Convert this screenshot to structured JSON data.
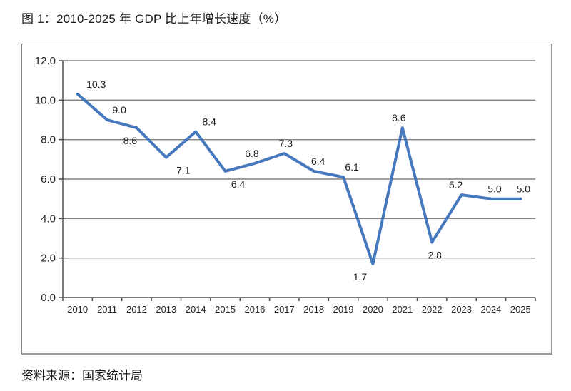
{
  "page": {
    "title": "图 1：2010-2025 年 GDP 比上年增长速度（%）",
    "source": "资料来源：国家统计局"
  },
  "chart_data": {
    "type": "line",
    "title": "图 1：2010-2025 年 GDP 比上年增长速度（%）",
    "categories": [
      "2010",
      "2011",
      "2012",
      "2013",
      "2014",
      "2015",
      "2016",
      "2017",
      "2018",
      "2019",
      "2020",
      "2021",
      "2022",
      "2023",
      "2024",
      "2025"
    ],
    "series": [
      {
        "name": "GDP 比上年增长速度（%）",
        "values": [
          10.3,
          9.0,
          8.6,
          7.1,
          8.4,
          6.4,
          6.8,
          7.3,
          6.4,
          6.1,
          1.7,
          8.6,
          2.8,
          5.2,
          5.0,
          5.0
        ],
        "data_labels": [
          "10.3",
          "9.0",
          "8.6",
          "7.1",
          "8.4",
          "6.4",
          "6.8",
          "7.3",
          "6.4",
          "6.1",
          "1.7",
          "8.6",
          "2.8",
          "5.2",
          "5.0",
          "5.0"
        ],
        "label_positions": [
          "above",
          "above",
          "below",
          "below",
          "above",
          "below",
          "above",
          "above",
          "above",
          "above",
          "below",
          "above",
          "below",
          "above",
          "above",
          "above"
        ],
        "label_dx": [
          26,
          17,
          -9,
          24,
          19,
          18,
          -4,
          2,
          6,
          12,
          -18,
          -5,
          4,
          -8,
          5,
          4
        ]
      }
    ],
    "xlabel": "",
    "ylabel": "",
    "ylim": [
      0,
      12
    ],
    "ytick_values": [
      0,
      2,
      4,
      6,
      8,
      10,
      12
    ],
    "ytick_labels": [
      "0.0",
      "2.0",
      "4.0",
      "6.0",
      "8.0",
      "10.0",
      "12.0"
    ],
    "grid": true,
    "legend": "none",
    "colors": {
      "line": "#4678BE",
      "gridline": "#808080",
      "axis": "#4d4d4d",
      "tick": "#4d4d4d",
      "data_label": "#1a1a1a",
      "axis_label": "#262626",
      "background": "#ffffff"
    }
  }
}
